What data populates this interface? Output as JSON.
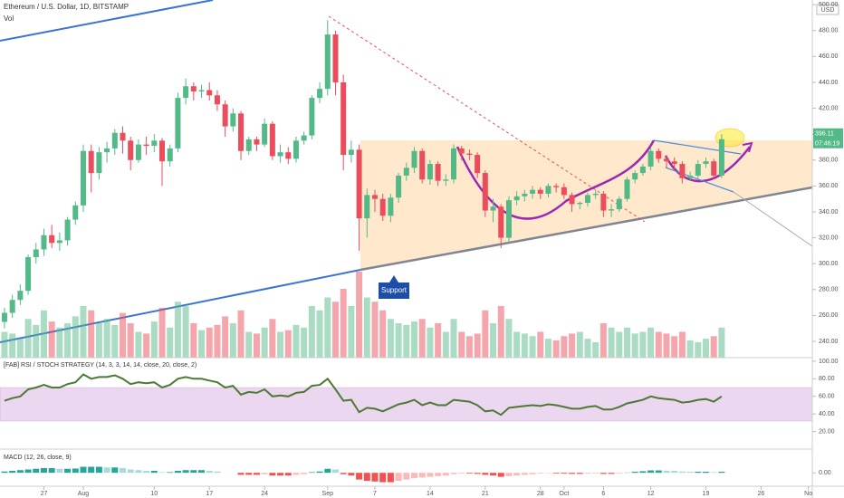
{
  "chart_data": [
    {
      "type": "candlestick",
      "title": "Ethereum / U.S. Dollar, 1D, BITSTAMP",
      "volume_label": "Vol",
      "currency": "USD",
      "countdown": "07:46:19",
      "annotation": "Support",
      "up_color": "#53b987",
      "down_color": "#eb4d5c",
      "xlim": [
        -0.57,
        102.5
      ],
      "xticks": [
        {
          "value": 5,
          "label": "27"
        },
        {
          "value": 10,
          "label": "Aug"
        },
        {
          "value": 19,
          "label": "10"
        },
        {
          "value": 26,
          "label": "17"
        },
        {
          "value": 33,
          "label": "24"
        },
        {
          "value": 41,
          "label": "Sep"
        },
        {
          "value": 47,
          "label": "7"
        },
        {
          "value": 54,
          "label": "14"
        },
        {
          "value": 61,
          "label": "21"
        },
        {
          "value": 68,
          "label": "28"
        },
        {
          "value": 71,
          "label": "Oct"
        },
        {
          "value": 76,
          "label": "6"
        },
        {
          "value": 82,
          "label": "12"
        },
        {
          "value": 89,
          "label": "19"
        },
        {
          "value": 96,
          "label": "26"
        },
        {
          "value": 102,
          "label": "No"
        }
      ],
      "ylim": [
        227.4,
        503.6
      ],
      "yticks": [
        {
          "value": 240,
          "label": "240.00"
        },
        {
          "value": 260,
          "label": "260.00"
        },
        {
          "value": 280,
          "label": "280.00"
        },
        {
          "value": 300,
          "label": "300.00"
        },
        {
          "value": 320,
          "label": "320.00"
        },
        {
          "value": 340,
          "label": "340.00"
        },
        {
          "value": 360,
          "label": "360.00"
        },
        {
          "value": 380,
          "label": "380.00"
        },
        {
          "value": 400,
          "label": "400.00"
        },
        {
          "value": 420,
          "label": "420.00"
        },
        {
          "value": 440,
          "label": "440.00"
        },
        {
          "value": 460,
          "label": "460.00"
        },
        {
          "value": 480,
          "label": "480.00"
        },
        {
          "value": 500,
          "label": "500.00"
        }
      ],
      "ohlc": [
        [
          255,
          266,
          250,
          262
        ],
        [
          262,
          276,
          258,
          272
        ],
        [
          272,
          284,
          268,
          279
        ],
        [
          279,
          307,
          276,
          305
        ],
        [
          305,
          316,
          300,
          311
        ],
        [
          311,
          327,
          306,
          322
        ],
        [
          322,
          330,
          312,
          316
        ],
        [
          316,
          324,
          310,
          318
        ],
        [
          318,
          336,
          314,
          334
        ],
        [
          334,
          348,
          330,
          345
        ],
        [
          345,
          392,
          340,
          387
        ],
        [
          387,
          392,
          355,
          370
        ],
        [
          370,
          390,
          365,
          386
        ],
        [
          386,
          394,
          378,
          389
        ],
        [
          389,
          404,
          384,
          401
        ],
        [
          401,
          406,
          385,
          395
        ],
        [
          395,
          398,
          372,
          380
        ],
        [
          380,
          396,
          378,
          392
        ],
        [
          392,
          398,
          384,
          391
        ],
        [
          391,
          400,
          386,
          395
        ],
        [
          395,
          397,
          360,
          379
        ],
        [
          379,
          392,
          375,
          389
        ],
        [
          389,
          432,
          386,
          428
        ],
        [
          428,
          443,
          423,
          437
        ],
        [
          437,
          440,
          426,
          433
        ],
        [
          433,
          438,
          428,
          434
        ],
        [
          434,
          440,
          426,
          430
        ],
        [
          430,
          434,
          418,
          423
        ],
        [
          423,
          426,
          398,
          406
        ],
        [
          406,
          420,
          402,
          416
        ],
        [
          416,
          418,
          380,
          387
        ],
        [
          387,
          398,
          384,
          396
        ],
        [
          396,
          398,
          387,
          392
        ],
        [
          392,
          412,
          390,
          408
        ],
        [
          408,
          410,
          380,
          383
        ],
        [
          383,
          392,
          378,
          386
        ],
        [
          386,
          390,
          377,
          381
        ],
        [
          381,
          398,
          378,
          395
        ],
        [
          395,
          402,
          392,
          399
        ],
        [
          399,
          430,
          396,
          428
        ],
        [
          428,
          440,
          424,
          435
        ],
        [
          435,
          488,
          430,
          477
        ],
        [
          477,
          480,
          430,
          440
        ],
        [
          440,
          446,
          372,
          384
        ],
        [
          384,
          395,
          378,
          388
        ],
        [
          388,
          392,
          310,
          335
        ],
        [
          335,
          358,
          320,
          353
        ],
        [
          353,
          357,
          340,
          350
        ],
        [
          350,
          354,
          333,
          337
        ],
        [
          337,
          354,
          332,
          351
        ],
        [
          351,
          370,
          347,
          368
        ],
        [
          368,
          378,
          364,
          374
        ],
        [
          374,
          390,
          370,
          387
        ],
        [
          387,
          389,
          362,
          365
        ],
        [
          365,
          380,
          361,
          377
        ],
        [
          377,
          379,
          360,
          364
        ],
        [
          364,
          369,
          360,
          365
        ],
        [
          365,
          392,
          362,
          389
        ],
        [
          389,
          391,
          380,
          385
        ],
        [
          385,
          388,
          380,
          384
        ],
        [
          384,
          386,
          366,
          370
        ],
        [
          370,
          372,
          336,
          341
        ],
        [
          341,
          350,
          332,
          344
        ],
        [
          344,
          346,
          312,
          320
        ],
        [
          320,
          352,
          316,
          349
        ],
        [
          349,
          356,
          345,
          352
        ],
        [
          352,
          357,
          348,
          354
        ],
        [
          354,
          360,
          350,
          357
        ],
        [
          357,
          359,
          350,
          354
        ],
        [
          354,
          362,
          351,
          360
        ],
        [
          360,
          362,
          355,
          359
        ],
        [
          359,
          362,
          350,
          353
        ],
        [
          353,
          355,
          340,
          346
        ],
        [
          346,
          348,
          342,
          347
        ],
        [
          347,
          355,
          344,
          353
        ],
        [
          353,
          357,
          350,
          354
        ],
        [
          354,
          356,
          336,
          341
        ],
        [
          341,
          346,
          336,
          342
        ],
        [
          342,
          352,
          340,
          350
        ],
        [
          350,
          367,
          348,
          365
        ],
        [
          365,
          372,
          362,
          370
        ],
        [
          370,
          377,
          368,
          375
        ],
        [
          375,
          390,
          372,
          387
        ],
        [
          387,
          389,
          378,
          381
        ],
        [
          381,
          384,
          374,
          379
        ],
        [
          379,
          382,
          372,
          377
        ],
        [
          377,
          379,
          362,
          366
        ],
        [
          366,
          371,
          364,
          368
        ],
        [
          368,
          380,
          366,
          377
        ],
        [
          377,
          382,
          374,
          379
        ],
        [
          379,
          381,
          366,
          368
        ],
        [
          368,
          400,
          366,
          396.11
        ]
      ],
      "volume_lim": [
        0,
        100
      ],
      "volume": [
        30,
        28,
        22,
        45,
        38,
        55,
        42,
        35,
        40,
        48,
        60,
        55,
        40,
        45,
        38,
        52,
        40,
        30,
        28,
        42,
        58,
        35,
        65,
        60,
        40,
        32,
        35,
        38,
        48,
        40,
        55,
        30,
        28,
        35,
        45,
        30,
        32,
        38,
        35,
        60,
        55,
        70,
        65,
        80,
        60,
        100,
        70,
        65,
        55,
        45,
        40,
        38,
        42,
        45,
        35,
        40,
        30,
        45,
        30,
        25,
        28,
        55,
        40,
        60,
        45,
        30,
        28,
        25,
        30,
        22,
        20,
        25,
        28,
        30,
        22,
        18,
        40,
        35,
        30,
        35,
        28,
        30,
        35,
        30,
        28,
        25,
        30,
        20,
        18,
        22,
        25,
        35
      ]
    },
    {
      "type": "line",
      "title": "[FAB] RSI / STOCH STRATEGY (14, 3, 3, 14, 14, close, 20, close, 2)",
      "color": "#4c7a34",
      "band": [
        32,
        70
      ],
      "band_color": "#e1bee7",
      "ylim": [
        -1,
        103
      ],
      "yticks": [
        {
          "value": 20,
          "label": "20.00"
        },
        {
          "value": 40,
          "label": "40.00"
        },
        {
          "value": 60,
          "label": "60.00"
        },
        {
          "value": 80,
          "label": "80.00"
        },
        {
          "value": 100,
          "label": "100.00"
        }
      ],
      "values": [
        55,
        58,
        60,
        68,
        70,
        73,
        70,
        70,
        74,
        76,
        85,
        80,
        82,
        82,
        84,
        80,
        74,
        76,
        75,
        76,
        70,
        73,
        80,
        82,
        80,
        80,
        78,
        76,
        70,
        72,
        62,
        65,
        64,
        68,
        60,
        61,
        60,
        64,
        65,
        72,
        73,
        80,
        68,
        55,
        56,
        42,
        47,
        46,
        43,
        47,
        51,
        53,
        56,
        50,
        53,
        50,
        50,
        56,
        55,
        54,
        50,
        43,
        44,
        39,
        47,
        48,
        49,
        50,
        49,
        51,
        50,
        48,
        46,
        46,
        48,
        49,
        45,
        45,
        48,
        52,
        54,
        56,
        60,
        58,
        57,
        56,
        53,
        54,
        56,
        57,
        54,
        60
      ]
    },
    {
      "type": "bar",
      "title": "MACD (12, 26, close, 9)",
      "up_color": "#26a69a",
      "down_color": "#ef5350",
      "ylim": [
        -10,
        17
      ],
      "yticks": [
        {
          "value": 0,
          "label": "0.00"
        }
      ],
      "values": [
        1,
        1.5,
        2,
        2.5,
        3,
        3.5,
        3.5,
        3,
        3,
        3.2,
        4.5,
        4.5,
        4.5,
        4,
        4,
        3.5,
        2.5,
        2,
        1.5,
        1.5,
        0.5,
        0.5,
        1.5,
        2,
        2,
        2,
        1.5,
        1,
        0,
        0,
        -1.5,
        -1.5,
        -1.5,
        -1,
        -2,
        -2,
        -2,
        -1.5,
        -1,
        0.5,
        1,
        3,
        2.5,
        -1,
        -2,
        -5,
        -6,
        -6.5,
        -7,
        -7,
        -6,
        -5,
        -4,
        -3.5,
        -3,
        -2.5,
        -2,
        -1,
        -0.5,
        -0.5,
        -0.8,
        -1.5,
        -2,
        -3,
        -2.5,
        -2,
        -1.5,
        -1,
        -0.5,
        -0.3,
        -0.5,
        -0.6,
        -0.8,
        -0.8,
        -0.6,
        -0.5,
        -0.8,
        -0.8,
        -0.5,
        0.2,
        0.8,
        1.2,
        1.8,
        1.8,
        1.6,
        1.5,
        1,
        0.8,
        0.8,
        0.8,
        0.5,
        0.8
      ]
    }
  ]
}
